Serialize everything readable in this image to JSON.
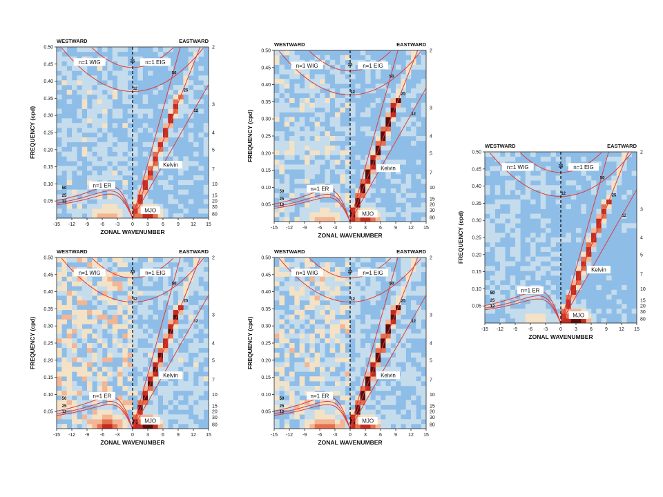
{
  "chart_data": [
    {
      "type": "heatmap",
      "panel": "top-left",
      "xlabel": "ZONAL  WAVENUMBER",
      "ylabel": "FREQUENCY  (cpd)",
      "header_left": "WESTWARD",
      "header_right": "EASTWARD",
      "xlim": [
        -15,
        15
      ],
      "ylim": [
        0,
        0.5
      ],
      "x_ticks": [
        -15,
        -12,
        -9,
        -6,
        -3,
        0,
        3,
        6,
        9,
        12,
        15
      ],
      "y_ticks": [
        0.05,
        0.1,
        0.15,
        0.2,
        0.25,
        0.3,
        0.35,
        0.4,
        0.45,
        0.5
      ],
      "period_labels": [
        "2",
        "3",
        "4",
        "5",
        "7",
        "10",
        "15",
        "20",
        "30",
        "80"
      ],
      "wave_labels": [
        "n=1 WIG",
        "n=1 EIG",
        "Kelvin",
        "n=1 ER",
        "MJO"
      ],
      "depth_labels": [
        "12",
        "25",
        "50"
      ],
      "intensity": {
        "kelvin": 0.8,
        "mjo": 0.8,
        "er": 0.6,
        "bg": 0.55
      }
    },
    {
      "type": "heatmap",
      "panel": "top-middle",
      "xlabel": "ZONAL  WAVENUMBER",
      "ylabel": "FREQUENCY  (cpd)",
      "header_left": "WESTWARD",
      "header_right": "EASTWARD",
      "xlim": [
        -15,
        15
      ],
      "ylim": [
        0,
        0.5
      ],
      "x_ticks": [
        -15,
        -12,
        -9,
        -6,
        -3,
        0,
        3,
        6,
        9,
        12,
        15
      ],
      "y_ticks": [
        0.05,
        0.1,
        0.15,
        0.2,
        0.25,
        0.3,
        0.35,
        0.4,
        0.45,
        0.5
      ],
      "period_labels": [
        "2",
        "3",
        "4",
        "5",
        "7",
        "10",
        "15",
        "20",
        "30",
        "80"
      ],
      "wave_labels": [
        "n=1 WIG",
        "n=1 EIG",
        "Kelvin",
        "n=1 ER",
        "MJO"
      ],
      "depth_labels": [
        "12",
        "25",
        "50"
      ],
      "intensity": {
        "kelvin": 1.0,
        "mjo": 0.9,
        "er": 0.6,
        "bg": 0.6
      }
    },
    {
      "type": "heatmap",
      "panel": "right",
      "xlabel": "ZONAL  WAVENUMBER",
      "ylabel": "FREQUENCY  (cpd)",
      "header_left": "WESTWARD",
      "header_right": "EASTWARD",
      "xlim": [
        -15,
        15
      ],
      "ylim": [
        0,
        0.5
      ],
      "x_ticks": [
        -15,
        -12,
        -9,
        -6,
        -3,
        0,
        3,
        6,
        9,
        12,
        15
      ],
      "y_ticks": [
        0.05,
        0.1,
        0.15,
        0.2,
        0.25,
        0.3,
        0.35,
        0.4,
        0.45,
        0.5
      ],
      "period_labels": [
        "2",
        "3",
        "4",
        "5",
        "7",
        "10",
        "15",
        "20",
        "30",
        "80"
      ],
      "wave_labels": [
        "n=1 WIG",
        "n=1 EIG",
        "Kelvin",
        "n=1 ER",
        "MJO"
      ],
      "depth_labels": [
        "12",
        "25",
        "50"
      ],
      "intensity": {
        "kelvin": 0.85,
        "mjo": 1.0,
        "er": 0.5,
        "bg": 0.45
      }
    },
    {
      "type": "heatmap",
      "panel": "bottom-left",
      "xlabel": "ZONAL  WAVENUMBER",
      "ylabel": "FREQUENCY  (cpd)",
      "header_left": "WESTWARD",
      "header_right": "EASTWARD",
      "xlim": [
        -15,
        15
      ],
      "ylim": [
        0,
        0.5
      ],
      "x_ticks": [
        -15,
        -12,
        -9,
        -6,
        -3,
        0,
        3,
        6,
        9,
        12,
        15
      ],
      "y_ticks": [
        0.05,
        0.1,
        0.15,
        0.2,
        0.25,
        0.3,
        0.35,
        0.4,
        0.45,
        0.5
      ],
      "period_labels": [
        "2",
        "3",
        "4",
        "5",
        "7",
        "10",
        "15",
        "20",
        "30",
        "80"
      ],
      "wave_labels": [
        "n=1 WIG",
        "n=1 EIG",
        "Kelvin",
        "n=1 ER",
        "MJO"
      ],
      "depth_labels": [
        "12",
        "25",
        "50"
      ],
      "intensity": {
        "kelvin": 0.9,
        "mjo": 1.0,
        "er": 0.9,
        "bg": 0.85
      }
    },
    {
      "type": "heatmap",
      "panel": "bottom-middle",
      "xlabel": "ZONAL  WAVENUMBER",
      "ylabel": "FREQUENCY  (cpd)",
      "header_left": "WESTWARD",
      "header_right": "EASTWARD",
      "xlim": [
        -15,
        15
      ],
      "ylim": [
        0,
        0.5
      ],
      "x_ticks": [
        -15,
        -12,
        -9,
        -6,
        -3,
        0,
        3,
        6,
        9,
        12,
        15
      ],
      "y_ticks": [
        0.05,
        0.1,
        0.15,
        0.2,
        0.25,
        0.3,
        0.35,
        0.4,
        0.45,
        0.5
      ],
      "period_labels": [
        "2",
        "3",
        "4",
        "5",
        "7",
        "10",
        "15",
        "20",
        "30",
        "80"
      ],
      "wave_labels": [
        "n=1 WIG",
        "n=1 EIG",
        "Kelvin",
        "n=1 ER",
        "MJO"
      ],
      "depth_labels": [
        "12",
        "25",
        "50"
      ],
      "intensity": {
        "kelvin": 1.0,
        "mjo": 0.9,
        "er": 0.8,
        "bg": 0.8
      }
    }
  ],
  "colors": {
    "background_cell": "#8ebde8",
    "light_cell": "#c4dcec",
    "pale_cell": "#f4e2c6",
    "peach_cell": "#f3b594",
    "orange_cell": "#e6704e",
    "red_cell": "#c42b1e",
    "dark_cell": "#5c0d0a",
    "dispersion_curve": "#e03b35"
  }
}
